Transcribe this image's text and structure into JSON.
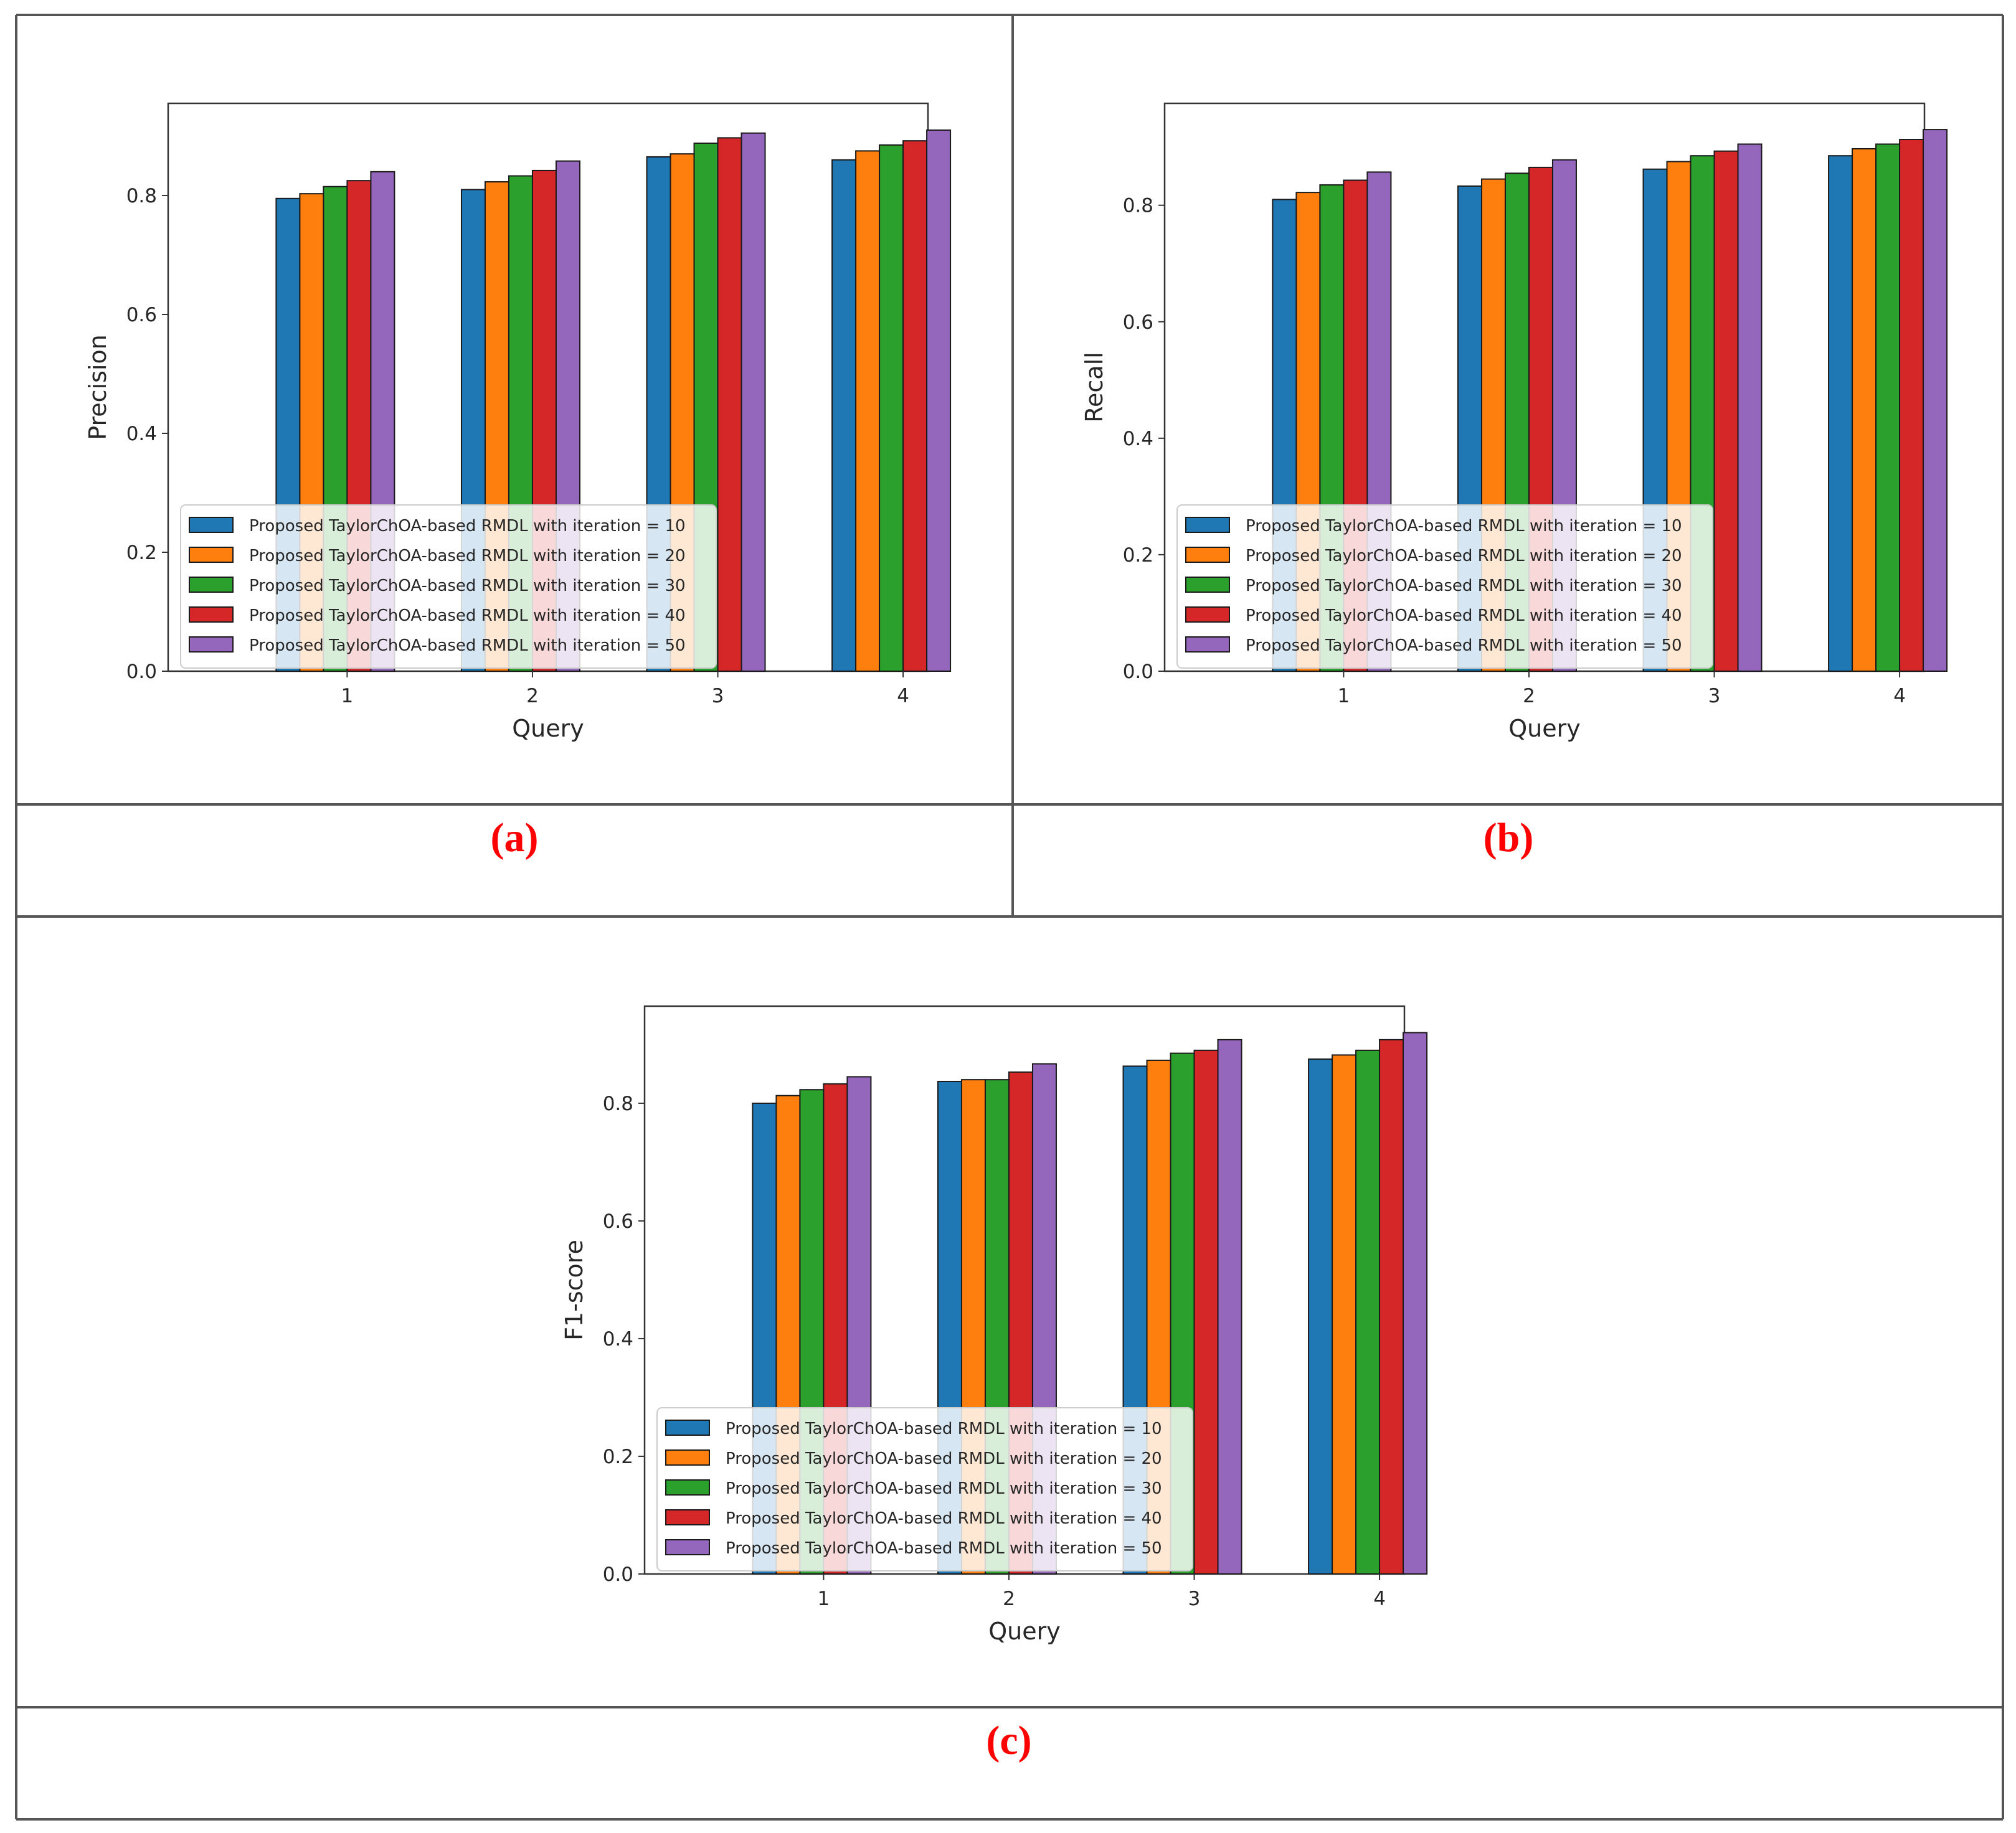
{
  "colors": {
    "series": [
      "#1f77b4",
      "#ff7f0e",
      "#2ca02c",
      "#d62728",
      "#9467bd"
    ],
    "panel_label": "#ff0000",
    "frame": "#555555"
  },
  "panels": [
    {
      "label": "(a)"
    },
    {
      "label": "(b)"
    },
    {
      "label": "(c)"
    }
  ],
  "chart_data": [
    {
      "type": "bar",
      "xlabel": "Query",
      "ylabel": "Precision",
      "ylim": [
        0,
        0.955
      ],
      "yticks": [
        "0.0",
        "0.2",
        "0.4",
        "0.6",
        "0.8"
      ],
      "categories": [
        "1",
        "2",
        "3",
        "4"
      ],
      "legend_position": "lower-left",
      "series": [
        {
          "name": "Proposed TaylorChOA-based RMDL with iteration = 10",
          "values": [
            0.795,
            0.81,
            0.865,
            0.86
          ]
        },
        {
          "name": "Proposed TaylorChOA-based RMDL with iteration = 20",
          "values": [
            0.803,
            0.823,
            0.87,
            0.875
          ]
        },
        {
          "name": "Proposed TaylorChOA-based RMDL with iteration = 30",
          "values": [
            0.815,
            0.833,
            0.888,
            0.885
          ]
        },
        {
          "name": "Proposed TaylorChOA-based RMDL with iteration = 40",
          "values": [
            0.825,
            0.842,
            0.897,
            0.892
          ]
        },
        {
          "name": "Proposed TaylorChOA-based RMDL with iteration = 50",
          "values": [
            0.84,
            0.858,
            0.905,
            0.91
          ]
        }
      ]
    },
    {
      "type": "bar",
      "xlabel": "Query",
      "ylabel": "Recall",
      "ylim": [
        0,
        0.975
      ],
      "yticks": [
        "0.0",
        "0.2",
        "0.4",
        "0.6",
        "0.8"
      ],
      "categories": [
        "1",
        "2",
        "3",
        "4"
      ],
      "legend_position": "lower-left",
      "series": [
        {
          "name": "Proposed TaylorChOA-based RMDL with iteration = 10",
          "values": [
            0.81,
            0.833,
            0.862,
            0.885
          ]
        },
        {
          "name": "Proposed TaylorChOA-based RMDL with iteration = 20",
          "values": [
            0.822,
            0.845,
            0.875,
            0.897
          ]
        },
        {
          "name": "Proposed TaylorChOA-based RMDL with iteration = 30",
          "values": [
            0.835,
            0.855,
            0.885,
            0.905
          ]
        },
        {
          "name": "Proposed TaylorChOA-based RMDL with iteration = 40",
          "values": [
            0.843,
            0.865,
            0.893,
            0.913
          ]
        },
        {
          "name": "Proposed TaylorChOA-based RMDL with iteration = 50",
          "values": [
            0.857,
            0.878,
            0.905,
            0.93
          ]
        }
      ]
    },
    {
      "type": "bar",
      "xlabel": "Query",
      "ylabel": "F1-score",
      "ylim": [
        0,
        0.965
      ],
      "yticks": [
        "0.0",
        "0.2",
        "0.4",
        "0.6",
        "0.8"
      ],
      "categories": [
        "1",
        "2",
        "3",
        "4"
      ],
      "legend_position": "lower-left",
      "series": [
        {
          "name": "Proposed TaylorChOA-based RMDL with iteration = 10",
          "values": [
            0.8,
            0.837,
            0.863,
            0.875
          ]
        },
        {
          "name": "Proposed TaylorChOA-based RMDL with iteration = 20",
          "values": [
            0.813,
            0.84,
            0.873,
            0.882
          ]
        },
        {
          "name": "Proposed TaylorChOA-based RMDL with iteration = 30",
          "values": [
            0.823,
            0.84,
            0.885,
            0.89
          ]
        },
        {
          "name": "Proposed TaylorChOA-based RMDL with iteration = 40",
          "values": [
            0.833,
            0.853,
            0.89,
            0.908
          ]
        },
        {
          "name": "Proposed TaylorChOA-based RMDL with iteration = 50",
          "values": [
            0.845,
            0.867,
            0.908,
            0.92
          ]
        }
      ]
    }
  ]
}
